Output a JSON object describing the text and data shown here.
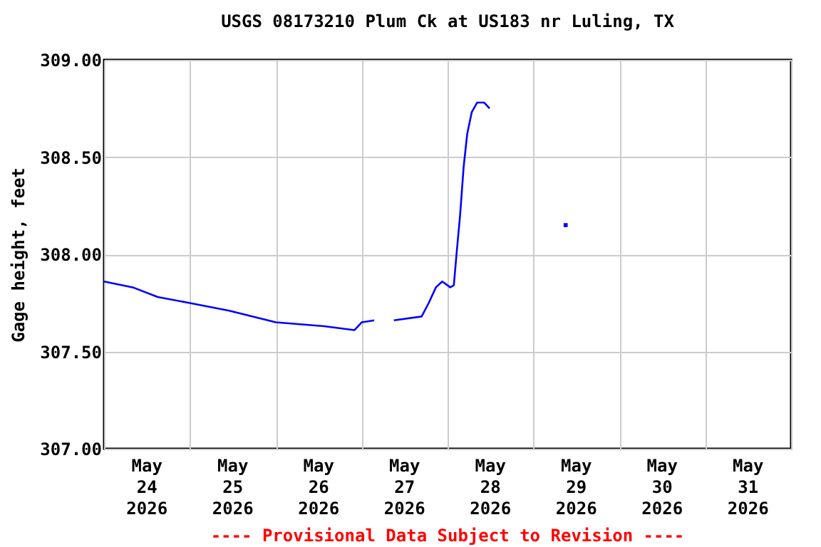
{
  "chart_data": {
    "type": "line",
    "title": "USGS 08173210 Plum Ck at US183 nr Luling, TX",
    "ylabel": "Gage height, feet",
    "annotations": [
      "---- Provisional Data Subject to Revision ----"
    ],
    "x": [
      "2026-05-24T00:00",
      "2026-05-24T08:00",
      "2026-05-24T15:00",
      "2026-05-24T23:45",
      "2026-05-25T11:00",
      "2026-05-26T00:00",
      "2026-05-26T13:30",
      "2026-05-26T22:00",
      "2026-05-27T00:00",
      "2026-05-27T03:30",
      "2026-05-27T06:00",
      "2026-05-27T09:00",
      "2026-05-27T16:45",
      "2026-05-27T18:45",
      "2026-05-27T20:45",
      "2026-05-27T22:30",
      "2026-05-28T00:45",
      "2026-05-28T01:45",
      "2026-05-28T02:30",
      "2026-05-28T03:30",
      "2026-05-28T04:30",
      "2026-05-28T05:30",
      "2026-05-28T06:45",
      "2026-05-28T08:15",
      "2026-05-28T10:15",
      "2026-05-28T11:45"
    ],
    "series": [
      {
        "color": "#0000ff",
        "values": [
          307.86,
          307.83,
          307.78,
          307.75,
          307.71,
          307.65,
          307.63,
          307.61,
          307.65,
          307.66,
          null,
          307.66,
          307.68,
          307.75,
          307.83,
          307.86,
          307.83,
          307.84,
          308.0,
          308.2,
          308.45,
          308.62,
          308.73,
          308.78,
          308.78,
          308.75
        ]
      },
      {
        "type": "scatter",
        "marker": "square",
        "color": "#0000ff",
        "x": [
          "2026-05-29T09:00"
        ],
        "values": [
          308.15
        ]
      }
    ],
    "xlim": [
      "2026-05-24T00:00",
      "2026-06-01T00:00"
    ],
    "xticks": [
      {
        "value": "2026-05-24T00:00",
        "label": null
      },
      {
        "value": "2026-05-24T12:00",
        "label": "May\n24\n2026"
      },
      {
        "value": "2026-05-25T00:00",
        "label": null
      },
      {
        "value": "2026-05-25T12:00",
        "label": "May\n25\n2026"
      },
      {
        "value": "2026-05-26T00:00",
        "label": null
      },
      {
        "value": "2026-05-26T12:00",
        "label": "May\n26\n2026"
      },
      {
        "value": "2026-05-27T00:00",
        "label": null
      },
      {
        "value": "2026-05-27T12:00",
        "label": "May\n27\n2026"
      },
      {
        "value": "2026-05-28T00:00",
        "label": null
      },
      {
        "value": "2026-05-28T12:00",
        "label": "May\n28\n2026"
      },
      {
        "value": "2026-05-29T00:00",
        "label": null
      },
      {
        "value": "2026-05-29T12:00",
        "label": "May\n29\n2026"
      },
      {
        "value": "2026-05-30T00:00",
        "label": null
      },
      {
        "value": "2026-05-30T12:00",
        "label": "May\n30\n2026"
      },
      {
        "value": "2026-05-31T00:00",
        "label": null
      },
      {
        "value": "2026-05-31T12:00",
        "label": "May\n31\n2026"
      },
      {
        "value": "2026-06-01T00:00",
        "label": null
      }
    ],
    "ylim": [
      307.0,
      309.0
    ],
    "yticks": [
      {
        "value": 307.0,
        "label": "307.00"
      },
      {
        "value": 307.5,
        "label": "307.50"
      },
      {
        "value": 308.0,
        "label": "308.00"
      },
      {
        "value": 308.5,
        "label": "308.50"
      },
      {
        "value": 309.0,
        "label": "309.00"
      }
    ],
    "grid": true,
    "marker": "none",
    "line_style": "solid"
  }
}
